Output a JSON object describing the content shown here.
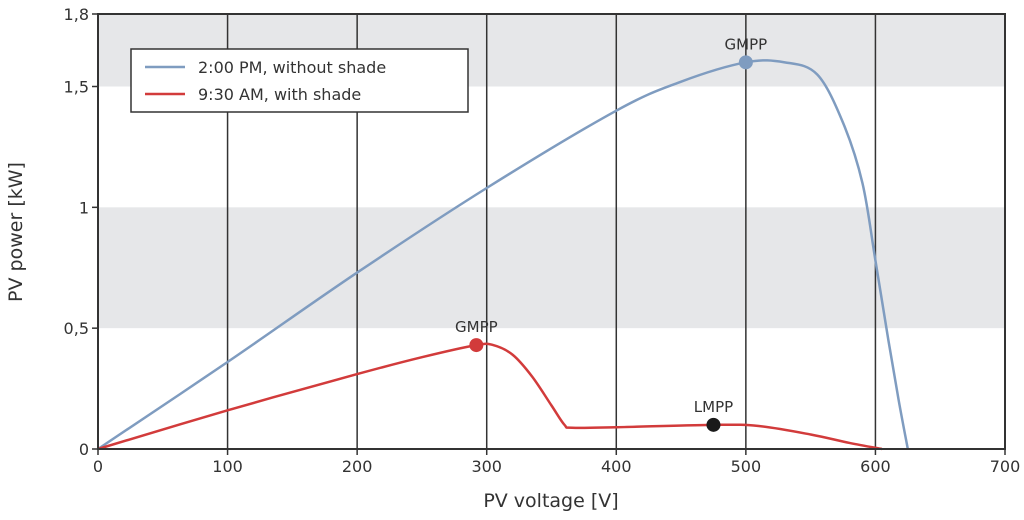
{
  "chart_data": {
    "type": "line",
    "xlabel": "PV voltage [V]",
    "ylabel": "PV power [kW]",
    "xlim": [
      0,
      700
    ],
    "ylim": [
      0,
      1.8
    ],
    "xticks": [
      0,
      100,
      200,
      300,
      400,
      500,
      600,
      700
    ],
    "xtick_labels": [
      "0",
      "100",
      "200",
      "300",
      "400",
      "500",
      "600",
      "700"
    ],
    "yticks": [
      0,
      0.5,
      1,
      1.5,
      1.8
    ],
    "ytick_labels": [
      "0",
      "0,5",
      "1",
      "1,5",
      "1,8"
    ],
    "grid": "vertical lines; shaded horizontal bands 0.5–1 and 1.5–1.8",
    "band_color": "#e6e7e9",
    "legend_placement": "top-left",
    "series": [
      {
        "name": "2:00 PM, without shade",
        "color": "#7f9cc0",
        "points": [
          [
            0,
            0
          ],
          [
            100,
            0.36
          ],
          [
            200,
            0.73
          ],
          [
            300,
            1.08
          ],
          [
            400,
            1.4
          ],
          [
            450,
            1.52
          ],
          [
            500,
            1.6
          ],
          [
            530,
            1.6
          ],
          [
            555,
            1.55
          ],
          [
            575,
            1.35
          ],
          [
            590,
            1.1
          ],
          [
            600,
            0.78
          ],
          [
            610,
            0.45
          ],
          [
            618,
            0.2
          ],
          [
            625,
            0
          ]
        ]
      },
      {
        "name": "9:30 AM, with shade",
        "color": "#d23b3b",
        "points": [
          [
            0,
            0
          ],
          [
            100,
            0.16
          ],
          [
            200,
            0.31
          ],
          [
            250,
            0.38
          ],
          [
            292,
            0.43
          ],
          [
            305,
            0.43
          ],
          [
            320,
            0.39
          ],
          [
            335,
            0.3
          ],
          [
            350,
            0.18
          ],
          [
            360,
            0.1
          ],
          [
            366,
            0.088
          ],
          [
            400,
            0.09
          ],
          [
            475,
            0.1
          ],
          [
            510,
            0.095
          ],
          [
            550,
            0.06
          ],
          [
            580,
            0.025
          ],
          [
            605,
            0
          ]
        ]
      }
    ],
    "annotations": [
      {
        "label": "GMPP",
        "x": 500,
        "y": 1.6,
        "color": "#7f9cc0"
      },
      {
        "label": "GMPP",
        "x": 292,
        "y": 0.43,
        "color": "#d23b3b"
      },
      {
        "label": "LMPP",
        "x": 475,
        "y": 0.1,
        "color": "#1a1a1a"
      }
    ]
  }
}
